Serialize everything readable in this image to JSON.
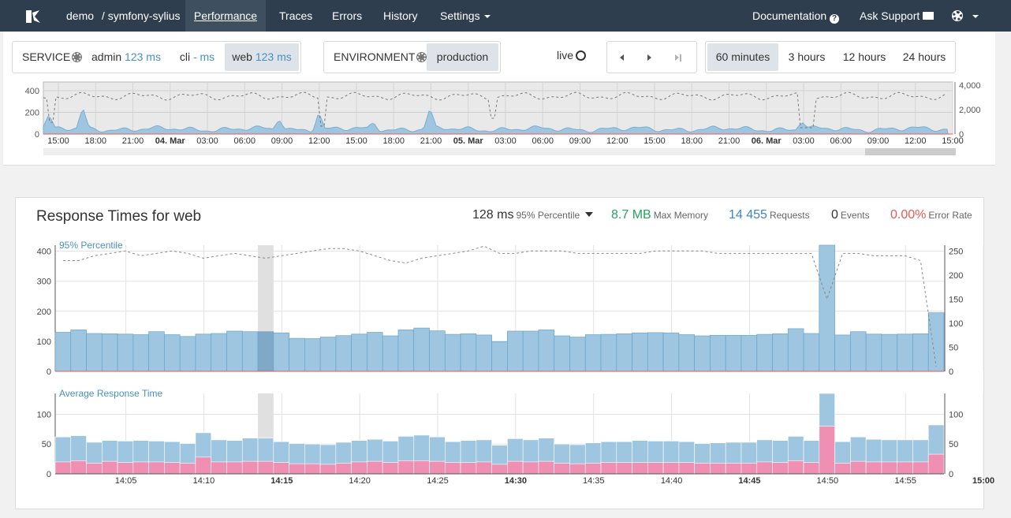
{
  "nav": {
    "project": "demo",
    "project_sub": "/ symfony-sylius",
    "items": [
      "Performance",
      "Traces",
      "Errors",
      "History",
      "Settings"
    ],
    "documentation": "Documentation",
    "support": "Ask Support"
  },
  "filters": {
    "service_label": "SERVICE",
    "services": [
      {
        "name": "admin",
        "value": "123 ms"
      },
      {
        "name": "cli",
        "value": "- ms"
      },
      {
        "name": "web",
        "value": "123 ms"
      }
    ],
    "environment_label": "ENVIRONMENT",
    "environment": "production",
    "live_label": "live",
    "ranges": [
      "60 minutes",
      "3 hours",
      "12 hours",
      "24 hours"
    ],
    "selected_range": "60 minutes"
  },
  "overview": {
    "y_ticks": [
      "400",
      "200",
      "0"
    ],
    "y2_ticks": [
      "4,000",
      "2,000",
      "0"
    ],
    "x_ticks": [
      "15:00",
      "18:00",
      "21:00",
      "04. Mar",
      "03:00",
      "06:00",
      "09:00",
      "12:00",
      "15:00",
      "18:00",
      "21:00",
      "05. Mar",
      "03:00",
      "06:00",
      "09:00",
      "12:00",
      "15:00",
      "18:00",
      "21:00",
      "06. Mar",
      "03:00",
      "06:00",
      "09:00",
      "12:00",
      "15:00"
    ],
    "bold_ticks": [
      "04. Mar",
      "05. Mar",
      "06. Mar"
    ]
  },
  "card": {
    "title": "Response Times for web",
    "metrics": {
      "p95_value": "128 ms",
      "p95_label": "95% Percentile",
      "memory_value": "8.7 MB",
      "memory_label": "Max Memory",
      "requests_value": "14 455",
      "requests_label": "Requests",
      "events_value": "0",
      "events_label": "Events",
      "error_value": "0.00%",
      "error_label": "Error Rate"
    }
  },
  "colors": {
    "nav_bg": "#2f3e4e",
    "bar_blue": "#9ec6e0",
    "bar_pink": "#ef8fb2",
    "memory_green": "#27a35c",
    "requests_blue": "#3a87c4",
    "error_red": "#e9594f"
  },
  "chart_data": [
    {
      "type": "bar",
      "title": "95% Percentile",
      "y_ticks": [
        0,
        100,
        200,
        300,
        400
      ],
      "y2_ticks": [
        0,
        50,
        100,
        150,
        200,
        250
      ],
      "x_ticks": [
        "14:05",
        "14:10",
        "14:15",
        "14:20",
        "14:25",
        "14:30",
        "14:35",
        "14:40",
        "14:45",
        "14:50",
        "14:55",
        "15:00"
      ],
      "bold_x_ticks": [
        "14:15",
        "14:30",
        "14:45",
        "15:00"
      ],
      "values": [
        130,
        138,
        126,
        125,
        124,
        122,
        132,
        122,
        116,
        124,
        126,
        134,
        132,
        132,
        128,
        110,
        109,
        114,
        119,
        124,
        130,
        118,
        138,
        144,
        135,
        123,
        125,
        121,
        99,
        134,
        134,
        138,
        118,
        114,
        122,
        123,
        125,
        128,
        129,
        128,
        122,
        118,
        120,
        120,
        120,
        123,
        125,
        142,
        126,
        420,
        121,
        132,
        124,
        123,
        124,
        125,
        195
      ],
      "requests_line": [
        230,
        230,
        240,
        245,
        250,
        240,
        245,
        250,
        245,
        235,
        240,
        245,
        240,
        235,
        240,
        245,
        250,
        255,
        255,
        250,
        240,
        230,
        225,
        235,
        240,
        245,
        250,
        260,
        245,
        245,
        250,
        250,
        250,
        245,
        245,
        245,
        245,
        245,
        250,
        250,
        250,
        250,
        245,
        245,
        245,
        245,
        245,
        245,
        245,
        150,
        245,
        245,
        240,
        240,
        240,
        230,
        10
      ]
    },
    {
      "type": "bar",
      "title": "Average Response Time",
      "y_ticks": [
        0,
        50,
        100
      ],
      "y2_ticks": [
        0,
        50,
        100
      ],
      "series": [
        {
          "values": [
            62,
            64,
            53,
            56,
            55,
            56,
            55,
            54,
            51,
            69,
            57,
            56,
            60,
            60,
            54,
            51,
            50,
            49,
            53,
            56,
            58,
            55,
            63,
            65,
            62,
            54,
            56,
            57,
            48,
            59,
            57,
            60,
            50,
            49,
            52,
            54,
            54,
            56,
            55,
            55,
            54,
            51,
            52,
            53,
            53,
            57,
            56,
            63,
            56,
            135,
            54,
            62,
            58,
            57,
            57,
            57,
            82
          ]
        },
        {
          "values": [
            20,
            22,
            18,
            21,
            19,
            20,
            20,
            19,
            18,
            28,
            20,
            20,
            21,
            21,
            19,
            17,
            17,
            16,
            18,
            20,
            21,
            19,
            22,
            22,
            21,
            19,
            19,
            20,
            16,
            21,
            20,
            21,
            18,
            17,
            18,
            19,
            19,
            19,
            19,
            19,
            19,
            18,
            18,
            18,
            18,
            20,
            19,
            22,
            19,
            80,
            18,
            21,
            20,
            20,
            20,
            20,
            33
          ]
        }
      ]
    }
  ]
}
